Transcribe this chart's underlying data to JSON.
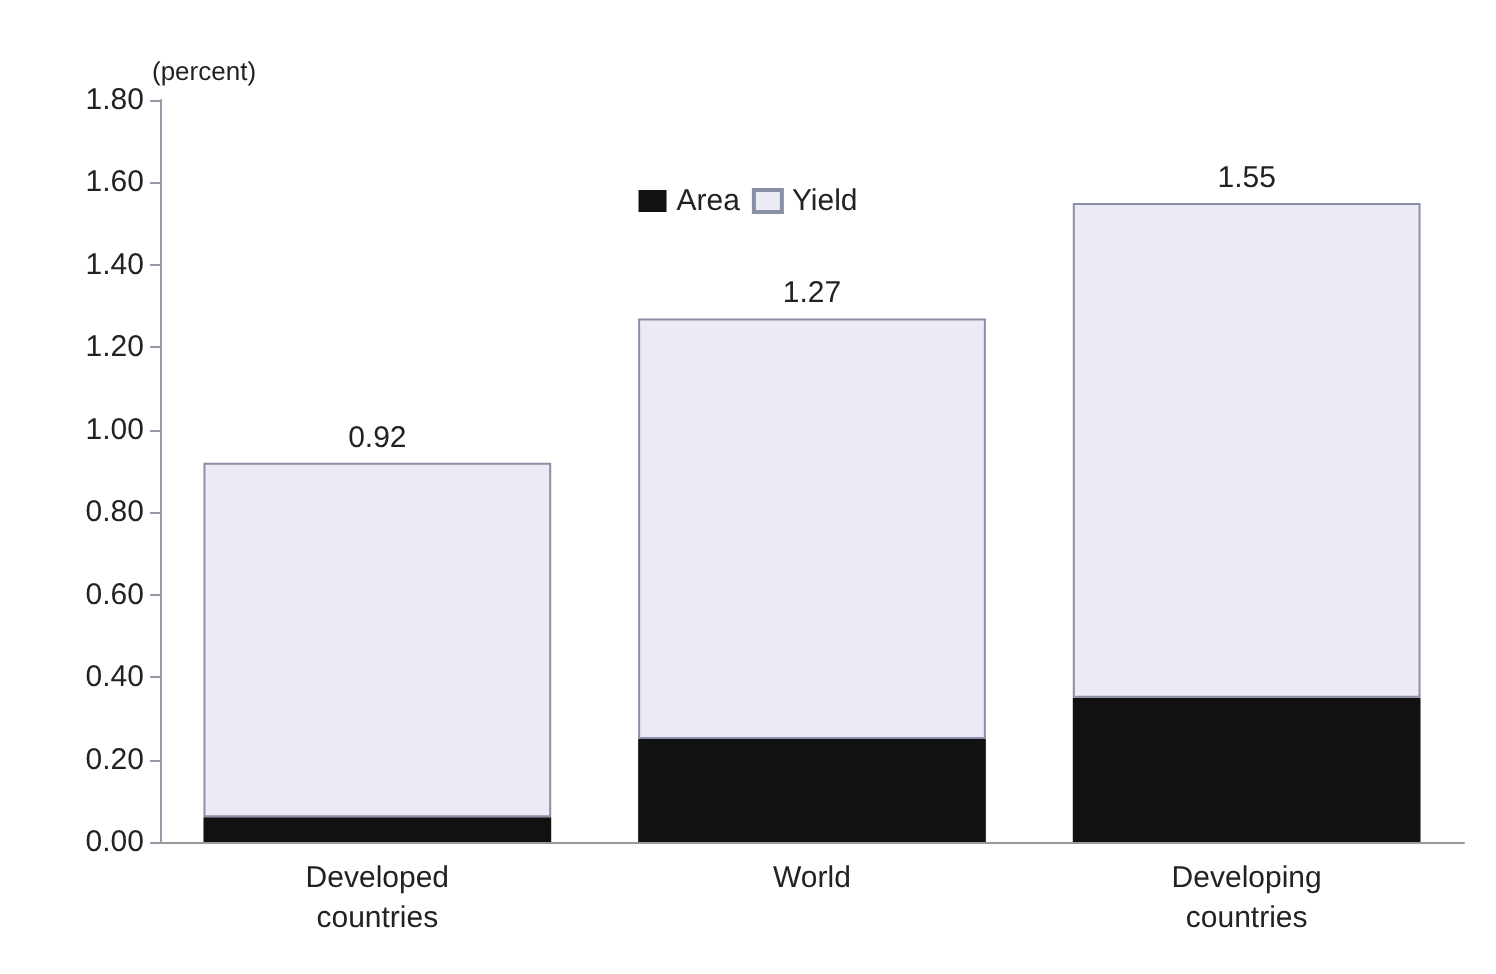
{
  "chart_data": {
    "type": "bar",
    "stacked": true,
    "ylabel": "(percent)",
    "categories": [
      "Developed\ncountries",
      "World",
      "Developing\ncountries"
    ],
    "series": [
      {
        "name": "Area",
        "color": "#111111",
        "values": [
          0.06,
          0.25,
          0.35
        ]
      },
      {
        "name": "Yield",
        "color": "#eceaf4",
        "values": [
          0.86,
          1.02,
          1.2
        ]
      }
    ],
    "totals": [
      "0.92",
      "1.27",
      "1.55"
    ],
    "ylim": [
      0,
      1.8
    ],
    "yticks": [
      {
        "value": 0,
        "label": "0.00"
      },
      {
        "value": 0.2,
        "label": "0.20"
      },
      {
        "value": 0.4,
        "label": "0.40"
      },
      {
        "value": 0.6,
        "label": "0.60"
      },
      {
        "value": 0.8,
        "label": "0.80"
      },
      {
        "value": 1,
        "label": "1.00"
      },
      {
        "value": 1.2,
        "label": "1.20"
      },
      {
        "value": 1.4,
        "label": "1.40"
      },
      {
        "value": 1.6,
        "label": "1.60"
      },
      {
        "value": 1.8,
        "label": "1.80"
      }
    ],
    "grid": false,
    "legend": "top"
  }
}
